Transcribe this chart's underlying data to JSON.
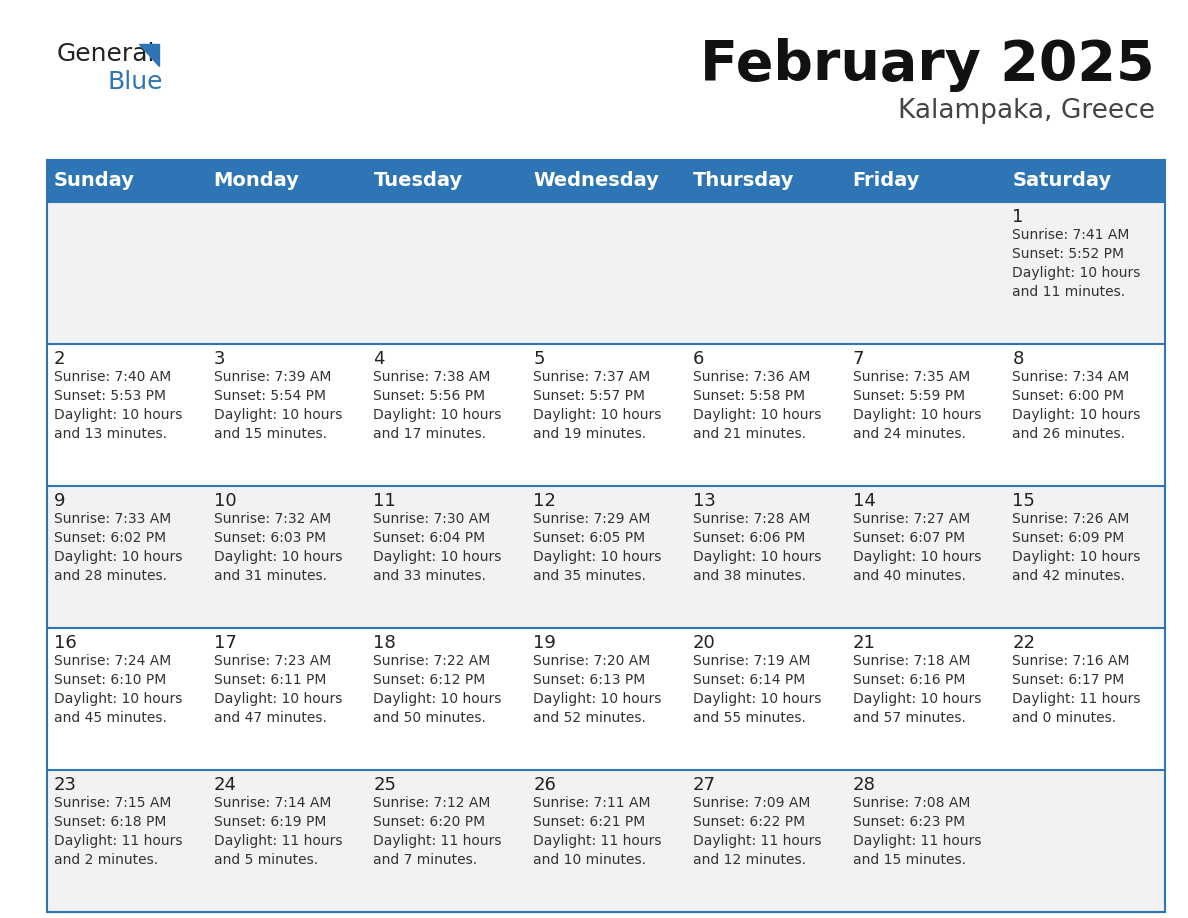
{
  "title": "February 2025",
  "subtitle": "Kalampaka, Greece",
  "header_bg": "#2E75B6",
  "header_text_color": "#FFFFFF",
  "cell_bg_row0": "#F2F2F2",
  "cell_bg_row1": "#FFFFFF",
  "cell_bg_row2": "#F2F2F2",
  "cell_bg_row3": "#FFFFFF",
  "cell_bg_row4": "#F2F2F2",
  "day_names": [
    "Sunday",
    "Monday",
    "Tuesday",
    "Wednesday",
    "Thursday",
    "Friday",
    "Saturday"
  ],
  "days": [
    {
      "day": 1,
      "col": 6,
      "row": 0,
      "sunrise": "7:41 AM",
      "sunset": "5:52 PM",
      "daylight": "10 hours\nand 11 minutes."
    },
    {
      "day": 2,
      "col": 0,
      "row": 1,
      "sunrise": "7:40 AM",
      "sunset": "5:53 PM",
      "daylight": "10 hours\nand 13 minutes."
    },
    {
      "day": 3,
      "col": 1,
      "row": 1,
      "sunrise": "7:39 AM",
      "sunset": "5:54 PM",
      "daylight": "10 hours\nand 15 minutes."
    },
    {
      "day": 4,
      "col": 2,
      "row": 1,
      "sunrise": "7:38 AM",
      "sunset": "5:56 PM",
      "daylight": "10 hours\nand 17 minutes."
    },
    {
      "day": 5,
      "col": 3,
      "row": 1,
      "sunrise": "7:37 AM",
      "sunset": "5:57 PM",
      "daylight": "10 hours\nand 19 minutes."
    },
    {
      "day": 6,
      "col": 4,
      "row": 1,
      "sunrise": "7:36 AM",
      "sunset": "5:58 PM",
      "daylight": "10 hours\nand 21 minutes."
    },
    {
      "day": 7,
      "col": 5,
      "row": 1,
      "sunrise": "7:35 AM",
      "sunset": "5:59 PM",
      "daylight": "10 hours\nand 24 minutes."
    },
    {
      "day": 8,
      "col": 6,
      "row": 1,
      "sunrise": "7:34 AM",
      "sunset": "6:00 PM",
      "daylight": "10 hours\nand 26 minutes."
    },
    {
      "day": 9,
      "col": 0,
      "row": 2,
      "sunrise": "7:33 AM",
      "sunset": "6:02 PM",
      "daylight": "10 hours\nand 28 minutes."
    },
    {
      "day": 10,
      "col": 1,
      "row": 2,
      "sunrise": "7:32 AM",
      "sunset": "6:03 PM",
      "daylight": "10 hours\nand 31 minutes."
    },
    {
      "day": 11,
      "col": 2,
      "row": 2,
      "sunrise": "7:30 AM",
      "sunset": "6:04 PM",
      "daylight": "10 hours\nand 33 minutes."
    },
    {
      "day": 12,
      "col": 3,
      "row": 2,
      "sunrise": "7:29 AM",
      "sunset": "6:05 PM",
      "daylight": "10 hours\nand 35 minutes."
    },
    {
      "day": 13,
      "col": 4,
      "row": 2,
      "sunrise": "7:28 AM",
      "sunset": "6:06 PM",
      "daylight": "10 hours\nand 38 minutes."
    },
    {
      "day": 14,
      "col": 5,
      "row": 2,
      "sunrise": "7:27 AM",
      "sunset": "6:07 PM",
      "daylight": "10 hours\nand 40 minutes."
    },
    {
      "day": 15,
      "col": 6,
      "row": 2,
      "sunrise": "7:26 AM",
      "sunset": "6:09 PM",
      "daylight": "10 hours\nand 42 minutes."
    },
    {
      "day": 16,
      "col": 0,
      "row": 3,
      "sunrise": "7:24 AM",
      "sunset": "6:10 PM",
      "daylight": "10 hours\nand 45 minutes."
    },
    {
      "day": 17,
      "col": 1,
      "row": 3,
      "sunrise": "7:23 AM",
      "sunset": "6:11 PM",
      "daylight": "10 hours\nand 47 minutes."
    },
    {
      "day": 18,
      "col": 2,
      "row": 3,
      "sunrise": "7:22 AM",
      "sunset": "6:12 PM",
      "daylight": "10 hours\nand 50 minutes."
    },
    {
      "day": 19,
      "col": 3,
      "row": 3,
      "sunrise": "7:20 AM",
      "sunset": "6:13 PM",
      "daylight": "10 hours\nand 52 minutes."
    },
    {
      "day": 20,
      "col": 4,
      "row": 3,
      "sunrise": "7:19 AM",
      "sunset": "6:14 PM",
      "daylight": "10 hours\nand 55 minutes."
    },
    {
      "day": 21,
      "col": 5,
      "row": 3,
      "sunrise": "7:18 AM",
      "sunset": "6:16 PM",
      "daylight": "10 hours\nand 57 minutes."
    },
    {
      "day": 22,
      "col": 6,
      "row": 3,
      "sunrise": "7:16 AM",
      "sunset": "6:17 PM",
      "daylight": "11 hours\nand 0 minutes."
    },
    {
      "day": 23,
      "col": 0,
      "row": 4,
      "sunrise": "7:15 AM",
      "sunset": "6:18 PM",
      "daylight": "11 hours\nand 2 minutes."
    },
    {
      "day": 24,
      "col": 1,
      "row": 4,
      "sunrise": "7:14 AM",
      "sunset": "6:19 PM",
      "daylight": "11 hours\nand 5 minutes."
    },
    {
      "day": 25,
      "col": 2,
      "row": 4,
      "sunrise": "7:12 AM",
      "sunset": "6:20 PM",
      "daylight": "11 hours\nand 7 minutes."
    },
    {
      "day": 26,
      "col": 3,
      "row": 4,
      "sunrise": "7:11 AM",
      "sunset": "6:21 PM",
      "daylight": "11 hours\nand 10 minutes."
    },
    {
      "day": 27,
      "col": 4,
      "row": 4,
      "sunrise": "7:09 AM",
      "sunset": "6:22 PM",
      "daylight": "11 hours\nand 12 minutes."
    },
    {
      "day": 28,
      "col": 5,
      "row": 4,
      "sunrise": "7:08 AM",
      "sunset": "6:23 PM",
      "daylight": "11 hours\nand 15 minutes."
    }
  ],
  "logo_color1": "#222222",
  "logo_color2": "#2E75B6",
  "title_fontsize": 40,
  "subtitle_fontsize": 19,
  "header_fontsize": 14,
  "day_num_fontsize": 13,
  "cell_text_fontsize": 10,
  "n_rows": 5,
  "n_cols": 7,
  "border_color": "#2E75B6",
  "divider_color": "#2E75B6",
  "cell_row_colors": [
    "#F2F2F2",
    "#FFFFFF",
    "#F2F2F2",
    "#FFFFFF",
    "#F2F2F2"
  ]
}
